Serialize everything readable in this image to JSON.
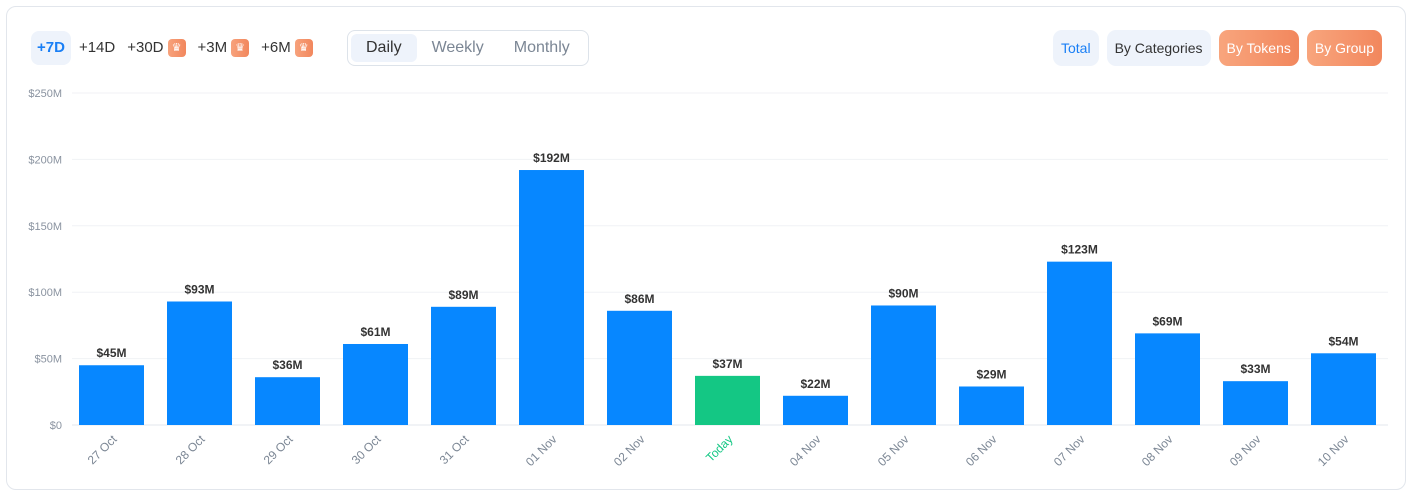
{
  "ranges": [
    {
      "label": "+7D",
      "active": true,
      "premium": false
    },
    {
      "label": "+14D",
      "premium": false
    },
    {
      "label": "+30D",
      "premium": true
    },
    {
      "label": "+3M",
      "premium": true
    },
    {
      "label": "+6M",
      "premium": true
    }
  ],
  "periods": [
    {
      "label": "Daily",
      "active": true
    },
    {
      "label": "Weekly"
    },
    {
      "label": "Monthly"
    }
  ],
  "modes": [
    {
      "label": "Total",
      "style": "blue"
    },
    {
      "label": "By Categories",
      "style": ""
    },
    {
      "label": "By Tokens",
      "style": "orange"
    },
    {
      "label": "By Group",
      "style": "orange"
    }
  ],
  "colors": {
    "bar": "#0787ff",
    "today": "#14c784",
    "accent": "#1a7ff5",
    "premium": "#f2875d"
  },
  "chart_data": {
    "type": "bar",
    "categories": [
      "27 Oct",
      "28 Oct",
      "29 Oct",
      "30 Oct",
      "31 Oct",
      "01 Nov",
      "02 Nov",
      "Today",
      "04 Nov",
      "05 Nov",
      "06 Nov",
      "07 Nov",
      "08 Nov",
      "09 Nov",
      "10 Nov"
    ],
    "values": [
      45,
      93,
      36,
      61,
      89,
      192,
      86,
      37,
      22,
      90,
      29,
      123,
      69,
      33,
      54
    ],
    "data_labels": [
      "$45M",
      "$93M",
      "$36M",
      "$61M",
      "$89M",
      "$192M",
      "$86M",
      "$37M",
      "$22M",
      "$90M",
      "$29M",
      "$123M",
      "$69M",
      "$33M",
      "$54M"
    ],
    "highlight_index": 7,
    "ylim": [
      0,
      250
    ],
    "yticks": [
      0,
      50,
      100,
      150,
      200,
      250
    ],
    "ytick_labels": [
      "$0",
      "$50M",
      "$100M",
      "$150M",
      "$200M",
      "$250M"
    ],
    "grid": true,
    "unit": "USD millions"
  }
}
